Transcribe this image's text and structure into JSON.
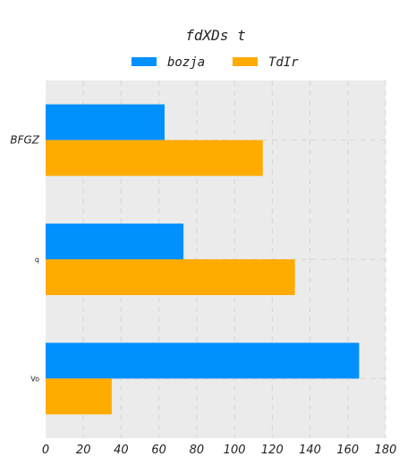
{
  "chart_data": {
    "type": "bar",
    "orientation": "horizontal",
    "title": "fdXDs t",
    "categories": [
      "BFGZ",
      "q",
      "Vo"
    ],
    "series": [
      {
        "name": "bozja",
        "color": "#0091ff",
        "values": [
          63,
          73,
          166
        ]
      },
      {
        "name": "TdIr",
        "color": "#ffab00",
        "values": [
          115,
          132,
          35
        ]
      }
    ],
    "xlim": [
      0,
      180
    ],
    "xticks": [
      "0",
      "20",
      "40",
      "60",
      "80",
      "100",
      "120",
      "140",
      "160",
      "180"
    ],
    "xlabel": "",
    "ylabel": "",
    "grid": true,
    "legend_position": "top",
    "plot_background": "#ebebeb"
  }
}
